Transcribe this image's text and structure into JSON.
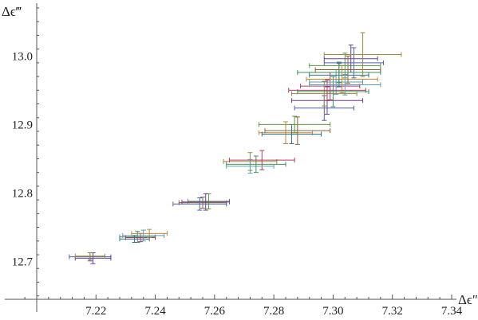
{
  "chart_data": {
    "type": "scatter",
    "title": "",
    "xlabel": "Δϵ″",
    "ylabel": "Δϵ‴",
    "xlim": [
      7.2,
      7.34
    ],
    "ylim": [
      12.645,
      13.07
    ],
    "x_ticks": [
      "7.22",
      "7.24",
      "7.26",
      "7.28",
      "7.30",
      "7.32",
      "7.34"
    ],
    "y_ticks": [
      "12.7",
      "12.8",
      "12.9",
      "13.0"
    ],
    "grid": false,
    "error_bars": true,
    "colors": [
      "#4a62b0",
      "#6d3f9a",
      "#9a8a3c",
      "#3f8f5a",
      "#b03a6a",
      "#5f9fb0",
      "#c28a3a",
      "#2f6f8f",
      "#8f5f3a",
      "#5a9a3c"
    ],
    "series": [
      {
        "x": 7.218,
        "y": 12.707,
        "xerr": 0.007,
        "yerr": 0.006
      },
      {
        "x": 7.219,
        "y": 12.705,
        "xerr": 0.006,
        "yerr": 0.008
      },
      {
        "x": 7.218,
        "y": 12.708,
        "xerr": 0.005,
        "yerr": 0.005
      },
      {
        "x": 7.234,
        "y": 12.736,
        "xerr": 0.006,
        "yerr": 0.008
      },
      {
        "x": 7.235,
        "y": 12.735,
        "xerr": 0.005,
        "yerr": 0.006
      },
      {
        "x": 7.236,
        "y": 12.738,
        "xerr": 0.007,
        "yerr": 0.008
      },
      {
        "x": 7.238,
        "y": 12.741,
        "xerr": 0.006,
        "yerr": 0.006
      },
      {
        "x": 7.233,
        "y": 12.733,
        "xerr": 0.005,
        "yerr": 0.005
      },
      {
        "x": 7.256,
        "y": 12.786,
        "xerr": 0.008,
        "yerr": 0.008
      },
      {
        "x": 7.258,
        "y": 12.788,
        "xerr": 0.007,
        "yerr": 0.011
      },
      {
        "x": 7.255,
        "y": 12.784,
        "xerr": 0.009,
        "yerr": 0.009
      },
      {
        "x": 7.257,
        "y": 12.787,
        "xerr": 0.008,
        "yerr": 0.012
      },
      {
        "x": 7.272,
        "y": 12.846,
        "xerr": 0.009,
        "yerr": 0.013
      },
      {
        "x": 7.274,
        "y": 12.842,
        "xerr": 0.01,
        "yerr": 0.012
      },
      {
        "x": 7.276,
        "y": 12.848,
        "xerr": 0.011,
        "yerr": 0.014
      },
      {
        "x": 7.272,
        "y": 12.839,
        "xerr": 0.008,
        "yerr": 0.01
      },
      {
        "x": 7.284,
        "y": 12.888,
        "xerr": 0.009,
        "yerr": 0.016
      },
      {
        "x": 7.286,
        "y": 12.886,
        "xerr": 0.01,
        "yerr": 0.014
      },
      {
        "x": 7.288,
        "y": 12.891,
        "xerr": 0.011,
        "yerr": 0.02
      },
      {
        "x": 7.287,
        "y": 12.9,
        "xerr": 0.012,
        "yerr": 0.012
      },
      {
        "x": 7.297,
        "y": 12.924,
        "xerr": 0.01,
        "yerr": 0.018
      },
      {
        "x": 7.298,
        "y": 12.935,
        "xerr": 0.012,
        "yerr": 0.02
      },
      {
        "x": 7.297,
        "y": 12.945,
        "xerr": 0.011,
        "yerr": 0.018
      },
      {
        "x": 7.3,
        "y": 12.948,
        "xerr": 0.012,
        "yerr": 0.022
      },
      {
        "x": 7.299,
        "y": 12.956,
        "xerr": 0.01,
        "yerr": 0.02
      },
      {
        "x": 7.301,
        "y": 12.962,
        "xerr": 0.009,
        "yerr": 0.018
      },
      {
        "x": 7.303,
        "y": 12.966,
        "xerr": 0.012,
        "yerr": 0.02
      },
      {
        "x": 7.302,
        "y": 12.972,
        "xerr": 0.01,
        "yerr": 0.017
      },
      {
        "x": 7.305,
        "y": 12.98,
        "xerr": 0.011,
        "yerr": 0.02
      },
      {
        "x": 7.304,
        "y": 12.986,
        "xerr": 0.012,
        "yerr": 0.018
      },
      {
        "x": 7.307,
        "y": 12.99,
        "xerr": 0.01,
        "yerr": 0.022
      },
      {
        "x": 7.306,
        "y": 12.996,
        "xerr": 0.009,
        "yerr": 0.02
      },
      {
        "x": 7.31,
        "y": 13.002,
        "xerr": 0.013,
        "yerr": 0.032
      },
      {
        "x": 7.302,
        "y": 12.976,
        "xerr": 0.014,
        "yerr": 0.015
      },
      {
        "x": 7.298,
        "y": 12.95,
        "xerr": 0.013,
        "yerr": 0.015
      },
      {
        "x": 7.304,
        "y": 12.958,
        "xerr": 0.012,
        "yerr": 0.015
      }
    ]
  }
}
